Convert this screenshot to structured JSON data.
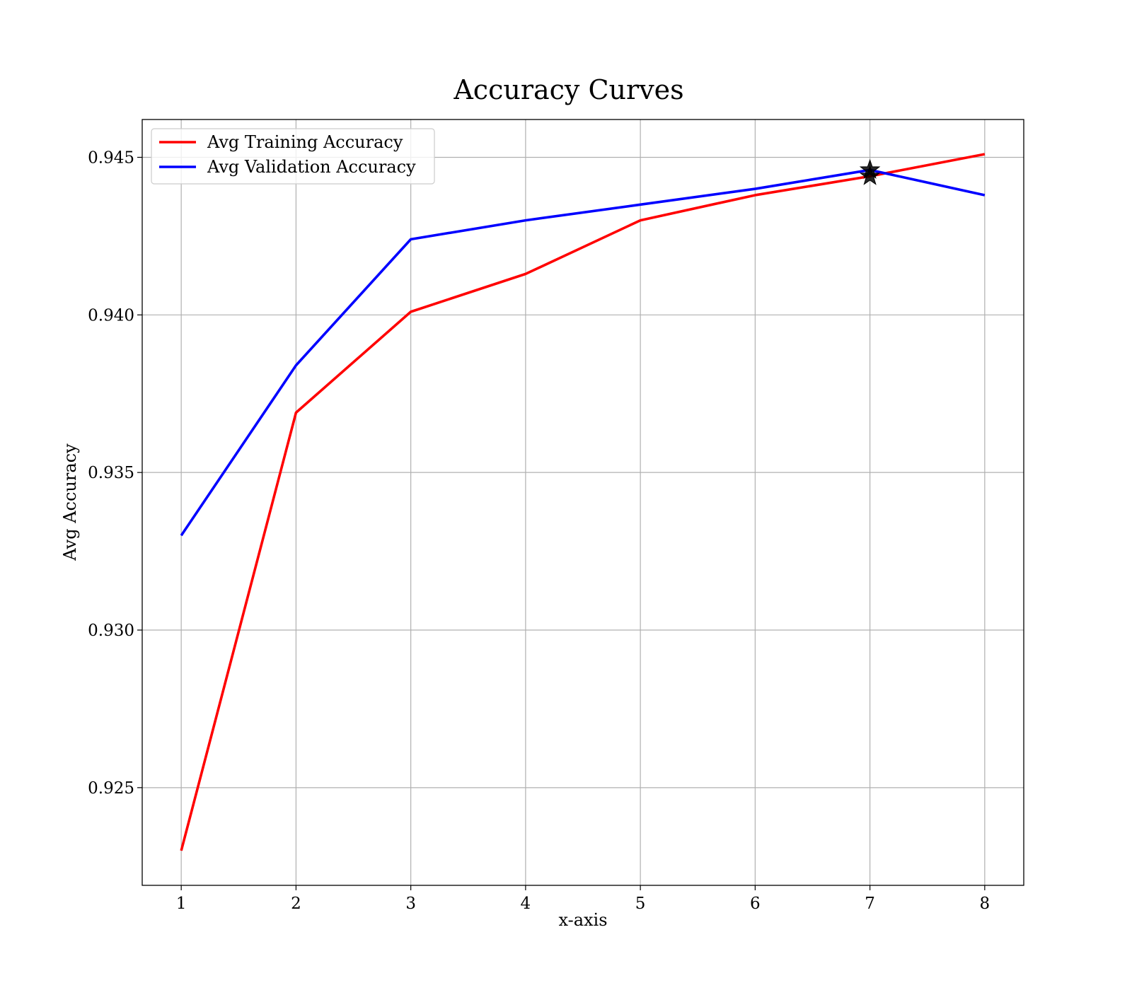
{
  "chart_data": {
    "type": "line",
    "title": "Accuracy Curves",
    "xlabel": "x-axis",
    "ylabel": "Avg Accuracy",
    "x": [
      1,
      2,
      3,
      4,
      5,
      6,
      7,
      8
    ],
    "xlim": [
      0.66,
      8.34
    ],
    "ylim": [
      0.9219,
      0.9462
    ],
    "xticks": [
      1,
      2,
      3,
      4,
      5,
      6,
      7,
      8
    ],
    "yticks": [
      0.925,
      0.93,
      0.935,
      0.94,
      0.945
    ],
    "ytick_labels": [
      "0.925",
      "0.930",
      "0.935",
      "0.940",
      "0.945"
    ],
    "grid": true,
    "legend_position": "top-left",
    "series": [
      {
        "name": "Avg Training Accuracy",
        "color": "#ff0000",
        "values": [
          0.923,
          0.9369,
          0.9401,
          0.9413,
          0.943,
          0.9438,
          0.9444,
          0.9451
        ]
      },
      {
        "name": "Avg Validation Accuracy",
        "color": "#0000ff",
        "values": [
          0.933,
          0.9384,
          0.9424,
          0.943,
          0.9435,
          0.944,
          0.9446,
          0.9438
        ]
      }
    ],
    "markers": [
      {
        "shape": "star",
        "x": 7,
        "y": 0.9446,
        "color": "#000000"
      },
      {
        "shape": "star",
        "x": 7,
        "y": 0.9444,
        "color": "#000000"
      }
    ]
  }
}
